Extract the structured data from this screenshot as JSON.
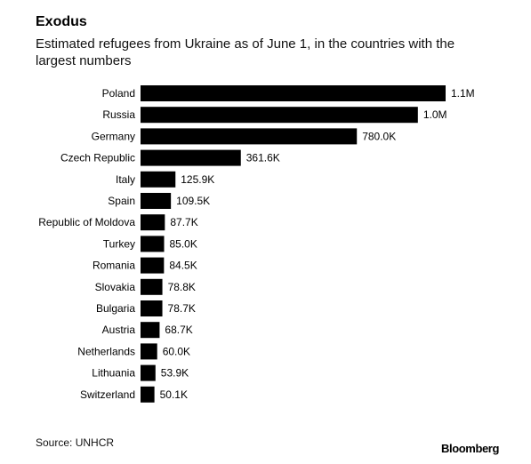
{
  "chart_data": {
    "type": "bar",
    "orientation": "horizontal",
    "title": "Exodus",
    "subtitle": "Estimated refugees from Ukraine as of June 1, in the countries with the largest numbers",
    "categories": [
      "Poland",
      "Russia",
      "Germany",
      "Czech Republic",
      "Italy",
      "Spain",
      "Republic of Moldova",
      "Turkey",
      "Romania",
      "Slovakia",
      "Bulgaria",
      "Austria",
      "Netherlands",
      "Lithuania",
      "Switzerland"
    ],
    "values": [
      1100000,
      1000000,
      780000,
      361600,
      125900,
      109500,
      87700,
      85000,
      84500,
      78800,
      78700,
      68700,
      60000,
      53900,
      50100
    ],
    "value_labels": [
      "1.1M",
      "1.0M",
      "780.0K",
      "361.6K",
      "125.9K",
      "109.5K",
      "87.7K",
      "85.0K",
      "84.5K",
      "78.8K",
      "78.7K",
      "68.7K",
      "60.0K",
      "53.9K",
      "50.1K"
    ],
    "xlim": [
      0,
      1100000
    ],
    "bar_color": "#000000",
    "grid": false,
    "legend": "none"
  },
  "footer": {
    "source": "Source: UNHCR",
    "brand": "Bloomberg"
  }
}
